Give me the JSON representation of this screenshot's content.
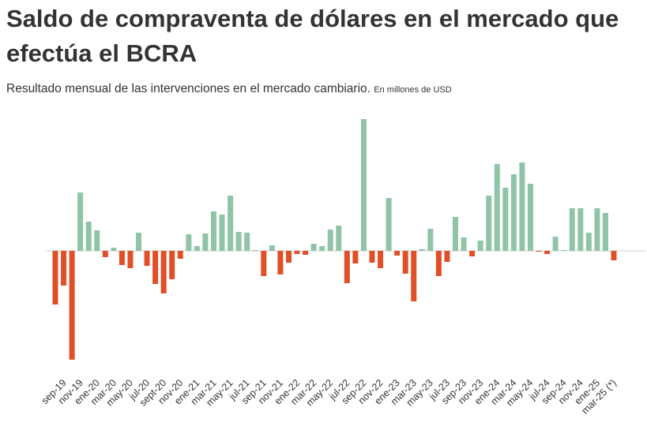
{
  "chart_data": {
    "type": "bar",
    "title": "Saldo de compraventa de dólares en el mercado que efectúa el BCRA",
    "subtitle": "Resultado  mensual de las intervenciones en el mercado cambiario.",
    "unit_note": "En millones de USD",
    "categories": [
      null,
      "sep-19",
      null,
      "nov-19",
      null,
      "ene-20",
      null,
      "mar-20",
      null,
      "may-20",
      null,
      "jul-20",
      null,
      "sept-20",
      null,
      "nov-20",
      null,
      "ene-21",
      null,
      "mar-21",
      null,
      "may-21",
      null,
      "jul-21",
      null,
      "sep-21",
      null,
      "nov-21",
      null,
      "ene-22",
      null,
      "mar-22",
      null,
      "may-22",
      null,
      "jul-22",
      null,
      "sep-22",
      null,
      "nov-22",
      null,
      "ene-23",
      null,
      "mar-23",
      null,
      "may-23",
      null,
      "jul-23",
      null,
      "sep-23",
      null,
      "nov-23",
      null,
      "ene-24",
      null,
      "mar-24",
      null,
      "may-24",
      null,
      "jul-24",
      null,
      "sep-24",
      null,
      "nov-24",
      null,
      "ene-25",
      null,
      "mar-25 (*)"
    ],
    "values": [
      -2040,
      -1320,
      -4140,
      2220,
      1110,
      780,
      -240,
      120,
      -540,
      -660,
      690,
      -570,
      -1260,
      -1620,
      -1080,
      -300,
      630,
      180,
      660,
      1500,
      1380,
      2100,
      720,
      690,
      30,
      -960,
      210,
      -900,
      -450,
      -120,
      -150,
      270,
      180,
      810,
      960,
      -1230,
      -480,
      5010,
      -450,
      -660,
      2010,
      -180,
      -870,
      -1920,
      60,
      840,
      -960,
      -420,
      1290,
      510,
      -210,
      390,
      2100,
      3300,
      2400,
      2910,
      3360,
      2550,
      -30,
      -120,
      540,
      30,
      1620,
      1620,
      690,
      1620,
      1440,
      -360
    ],
    "positive_color": "#8fc4a6",
    "negative_color": "#e04f27",
    "ylim": [
      -4560,
      5340
    ]
  }
}
